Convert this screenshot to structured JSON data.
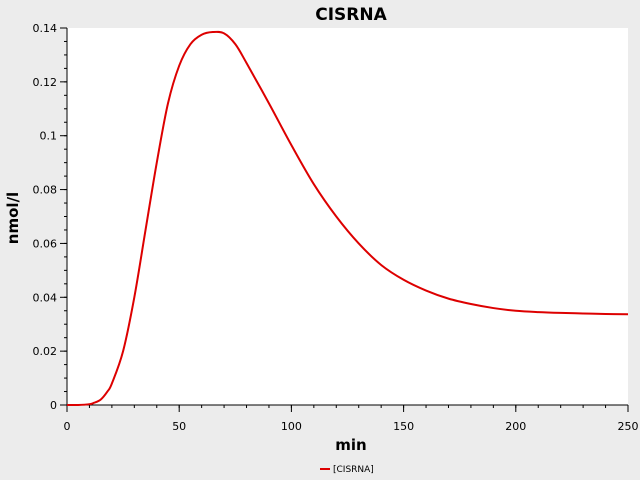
{
  "chart_data": {
    "type": "line",
    "title": "CISRNA",
    "xlabel": "min",
    "ylabel": "nmol/l",
    "xlim": [
      0,
      250
    ],
    "ylim": [
      0,
      0.14
    ],
    "x_ticks": [
      0,
      50,
      100,
      150,
      200,
      250
    ],
    "x_tick_labels": [
      "0",
      "50",
      "100",
      "150",
      "200",
      "250"
    ],
    "y_ticks": [
      0,
      0.02,
      0.04,
      0.06,
      0.08,
      0.1,
      0.12,
      0.14
    ],
    "y_tick_labels": [
      "0",
      "0.02",
      "0.04",
      "0.06",
      "0.08",
      "0.1",
      "0.12",
      "0.14"
    ],
    "grid": false,
    "legend_position": "bottom-center",
    "series": [
      {
        "name": "[CISRNA]",
        "color": "#dd0000",
        "x": [
          0,
          5,
          10,
          12,
          15,
          18,
          20,
          25,
          30,
          35,
          40,
          45,
          50,
          55,
          60,
          65,
          70,
          75,
          80,
          90,
          100,
          110,
          120,
          130,
          140,
          150,
          160,
          170,
          180,
          190,
          200,
          210,
          220,
          230,
          240,
          250
        ],
        "y": [
          0.0,
          0.0,
          0.0003,
          0.0008,
          0.002,
          0.005,
          0.008,
          0.02,
          0.04,
          0.065,
          0.09,
          0.112,
          0.126,
          0.134,
          0.1375,
          0.1385,
          0.138,
          0.134,
          0.127,
          0.112,
          0.0965,
          0.082,
          0.07,
          0.06,
          0.052,
          0.0465,
          0.0425,
          0.0395,
          0.0375,
          0.036,
          0.035,
          0.0345,
          0.0342,
          0.034,
          0.0338,
          0.0337
        ]
      }
    ]
  }
}
